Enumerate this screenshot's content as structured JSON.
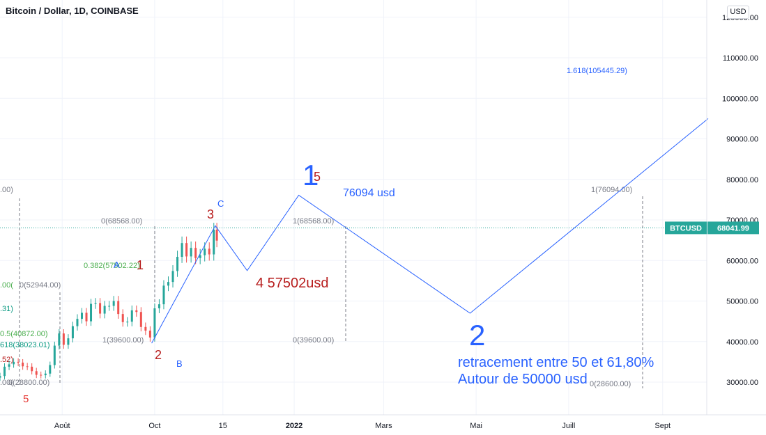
{
  "header": {
    "symbol_title": "Bitcoin / Dollar, 1D, COINBASE",
    "unit_button": "USD"
  },
  "chart_data": {
    "type": "line",
    "title": "Bitcoin / Dollar, 1D, COINBASE",
    "symbol": "BTCUSD",
    "last_price": 68041.99,
    "last_price_label": "68041.99",
    "y_axis": {
      "unit": "USD",
      "ylim": [
        25000,
        122000
      ],
      "ticks": [
        {
          "value": 30000,
          "label": "30000.00"
        },
        {
          "value": 40000,
          "label": "40000.00"
        },
        {
          "value": 50000,
          "label": "50000.00"
        },
        {
          "value": 60000,
          "label": "60000.00"
        },
        {
          "value": 70000,
          "label": "70000.00"
        },
        {
          "value": 80000,
          "label": "80000.00"
        },
        {
          "value": 90000,
          "label": "90000.00"
        },
        {
          "value": 100000,
          "label": "100000.00"
        },
        {
          "value": 110000,
          "label": "110000.00"
        },
        {
          "value": 120000,
          "label": "120000.00"
        }
      ]
    },
    "x_axis": {
      "xlim": [
        "2021-06-21",
        "2022-10-01"
      ],
      "ticks": [
        {
          "date": "2021-08-01",
          "label": "Août"
        },
        {
          "date": "2021-10-01",
          "label": "Oct"
        },
        {
          "date": "2021-11-15",
          "label": "15"
        },
        {
          "date": "2022-01-01",
          "label": "2022"
        },
        {
          "date": "2022-03-01",
          "label": "Mars"
        },
        {
          "date": "2022-05-01",
          "label": "Mai"
        },
        {
          "date": "2022-07-01",
          "label": "Juill"
        },
        {
          "date": "2022-09-01",
          "label": "Sept"
        }
      ]
    },
    "grid": true,
    "candles_close": [
      [
        "2021-06-21",
        31500
      ],
      [
        "2021-06-24",
        33800
      ],
      [
        "2021-06-27",
        34400
      ],
      [
        "2021-06-30",
        35000
      ],
      [
        "2021-07-03",
        34800
      ],
      [
        "2021-07-06",
        33900
      ],
      [
        "2021-07-09",
        33800
      ],
      [
        "2021-07-12",
        32700
      ],
      [
        "2021-07-15",
        31800
      ],
      [
        "2021-07-18",
        31700
      ],
      [
        "2021-07-21",
        32100
      ],
      [
        "2021-07-24",
        34200
      ],
      [
        "2021-07-27",
        39000
      ],
      [
        "2021-07-30",
        42000
      ],
      [
        "2021-08-02",
        39200
      ],
      [
        "2021-08-05",
        40800
      ],
      [
        "2021-08-08",
        43800
      ],
      [
        "2021-08-11",
        45600
      ],
      [
        "2021-08-14",
        47100
      ],
      [
        "2021-08-17",
        45000
      ],
      [
        "2021-08-20",
        49300
      ],
      [
        "2021-08-23",
        49500
      ],
      [
        "2021-08-26",
        46900
      ],
      [
        "2021-08-29",
        48800
      ],
      [
        "2021-09-01",
        48800
      ],
      [
        "2021-09-04",
        50000
      ],
      [
        "2021-09-07",
        46800
      ],
      [
        "2021-09-10",
        44800
      ],
      [
        "2021-09-13",
        44900
      ],
      [
        "2021-09-16",
        47700
      ],
      [
        "2021-09-19",
        47300
      ],
      [
        "2021-09-22",
        43600
      ],
      [
        "2021-09-25",
        42700
      ],
      [
        "2021-09-28",
        41000
      ],
      [
        "2021-10-01",
        48200
      ],
      [
        "2021-10-04",
        49200
      ],
      [
        "2021-10-07",
        53800
      ],
      [
        "2021-10-10",
        54700
      ],
      [
        "2021-10-13",
        57400
      ],
      [
        "2021-10-16",
        60900
      ],
      [
        "2021-10-19",
        64300
      ],
      [
        "2021-10-22",
        61000
      ],
      [
        "2021-10-25",
        63100
      ],
      [
        "2021-10-28",
        60600
      ],
      [
        "2021-10-31",
        61300
      ],
      [
        "2021-11-03",
        62900
      ],
      [
        "2021-11-06",
        61500
      ],
      [
        "2021-11-09",
        67600
      ],
      [
        "2021-11-11",
        64900
      ]
    ],
    "projection_path": [
      {
        "date": "2021-09-29",
        "value": 39600,
        "label": "2"
      },
      {
        "date": "2021-11-10",
        "value": 68568,
        "label": "3"
      },
      {
        "date": "2021-12-01",
        "value": 57502,
        "label": "4 57502usd"
      },
      {
        "date": "2022-01-04",
        "value": 76094,
        "label": "5"
      },
      {
        "date": "2022-04-27",
        "value": 47000,
        "label": "2"
      },
      {
        "date": "2022-10-01",
        "value": 95000,
        "label": ""
      }
    ],
    "fib_levels": [
      {
        "ratio": "1.618",
        "value": 105445.29,
        "label": "1.618(105445.29)"
      },
      {
        "ratio": "1",
        "value": 76094,
        "label": "1(76094.00)"
      },
      {
        "ratio": "0",
        "value": 68568,
        "label": "0(68568.00)"
      },
      {
        "ratio": "1",
        "value": 68568,
        "label": "1(68568.00)"
      },
      {
        "ratio": "0.382",
        "value": 57502.22,
        "label": "0.382(57502.22)"
      },
      {
        "ratio": "0",
        "value": 52944,
        "label": "0(52944.00)"
      },
      {
        "ratio": "0.5",
        "value": 40872,
        "label": "0.5(40872.00)"
      },
      {
        "ratio": "0.618",
        "value": 38023.01,
        "label": "618(38023.01)"
      },
      {
        "ratio": "1",
        "value": 39600,
        "label": "1(39600.00)"
      },
      {
        "ratio": "0",
        "value": 39600,
        "label": "0(39600.00)"
      },
      {
        "ratio": "0",
        "value": 28800,
        "label": "0(28800.00)"
      },
      {
        "ratio": "0",
        "value": 28600,
        "label": "0(28600.00)"
      }
    ],
    "partial_left_labels": [
      ".00)",
      ".00(",
      ".31)",
      ".52)",
      ".00("
    ],
    "wave_labels": [
      {
        "text": "5",
        "color": "#e53935"
      },
      {
        "text": "1",
        "color": "#b71c1c"
      },
      {
        "text": "A",
        "color": "#2962ff"
      },
      {
        "text": "2",
        "color": "#b71c1c"
      },
      {
        "text": "B",
        "color": "#2962ff"
      },
      {
        "text": "3",
        "color": "#b71c1c"
      },
      {
        "text": "C",
        "color": "#2962ff"
      },
      {
        "text": "1",
        "color": "#2962ff"
      },
      {
        "text": "5",
        "color": "#b71c1c"
      },
      {
        "text": "2",
        "color": "#2962ff"
      }
    ],
    "annotations": {
      "peak_price": "76094 usd",
      "wave4": "4 57502usd",
      "retracement_line1": "retracement entre 50 et 61,80%",
      "retracement_line2": "Autour de 50000 usd"
    },
    "colors": {
      "up_candle": "#26a69a",
      "down_candle": "#ef5350",
      "projection_line": "#2962ff",
      "price_badge": "#26a69a",
      "wave_red": "#b71c1c",
      "wave_blue": "#2962ff",
      "fib_grey": "#787b86",
      "fib_green": "#4caf50",
      "fib_teal": "#089981"
    }
  }
}
